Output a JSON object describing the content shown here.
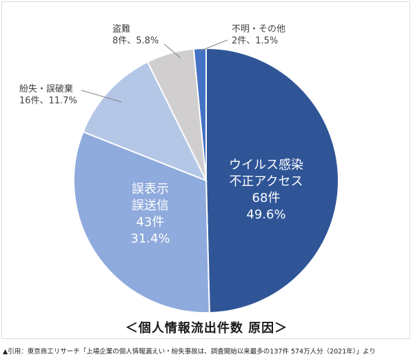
{
  "chart_data": {
    "type": "pie",
    "title": "＜個人情報流出件数 原因＞",
    "slices": [
      {
        "label_lines": [
          "ウイルス感染",
          "不正アクセス"
        ],
        "count": "68件",
        "percent": "49.6%",
        "value": 49.6,
        "color": "#2f5597",
        "label_inside": true
      },
      {
        "label_lines": [
          "誤表示",
          "誤送信"
        ],
        "count": "43件",
        "percent": "31.4%",
        "value": 31.4,
        "color": "#8faadc",
        "label_inside": true
      },
      {
        "label_lines": [
          "紛失・誤破棄"
        ],
        "count": "16件",
        "percent": "11.7%",
        "value": 11.7,
        "color": "#b4c7e7",
        "label_inside": false
      },
      {
        "label_lines": [
          "盗難"
        ],
        "count": "8件",
        "percent": "5.8%",
        "value": 5.8,
        "color": "#d0cece",
        "label_inside": false
      },
      {
        "label_lines": [
          "不明・その他"
        ],
        "count": "2件",
        "percent": "1.5%",
        "value": 1.5,
        "color": "#4472c4",
        "label_inside": false
      }
    ]
  },
  "source_note": "▲引用：東京商工リサーチ「上場企業の個人情報漏えい・紛失事故は、調査開始以来最多の137件 574万人分（2021年）」より"
}
